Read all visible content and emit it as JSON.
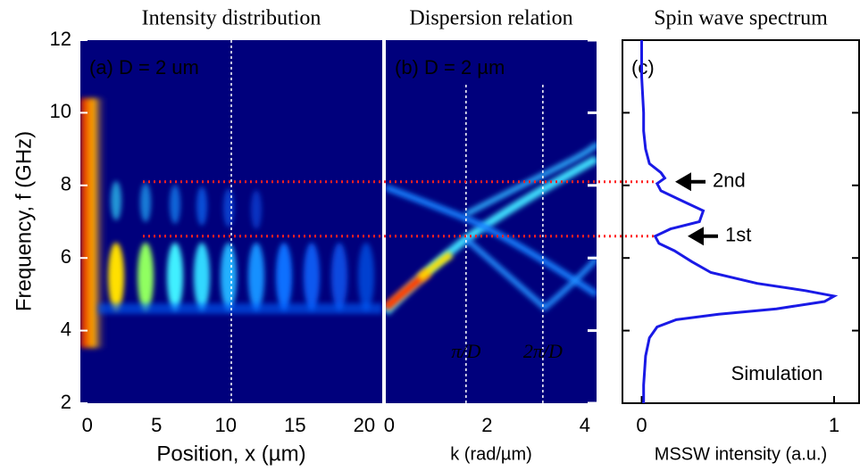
{
  "chart_data": [
    {
      "type": "heatmap",
      "title": "Intensity distribution",
      "panel_label": "(a) D = 2 um",
      "xlabel": "Position, x (µm)",
      "ylabel": "Frequency, f (GHz)",
      "xlim": [
        -0.5,
        21.3
      ],
      "xticks": [
        0,
        5,
        10,
        15,
        20
      ],
      "ylim": [
        2,
        12
      ],
      "yticks": [
        2,
        4,
        6,
        8,
        10,
        12
      ],
      "marker_lines": [
        10.4
      ]
    },
    {
      "type": "heatmap",
      "title": "Dispersion relation",
      "panel_label": "(b) D = 2 µm",
      "xlabel": "k (rad/µm)",
      "xlim": [
        -0.07,
        4.24
      ],
      "xticks": [
        0,
        2,
        4
      ],
      "ylim": [
        2,
        12
      ],
      "yticks": [
        2,
        4,
        6,
        8,
        10,
        12
      ],
      "marker_lines": [
        {
          "value": 1.571,
          "label": "π/D"
        },
        {
          "value": 3.142,
          "label": "2π/D"
        }
      ]
    },
    {
      "type": "line",
      "title": "Spin wave spectrum",
      "panel_label": "(c)",
      "xlabel": "MSSW intensity (a.u.)",
      "xlim": [
        -0.1,
        1.13
      ],
      "xticks": [
        0,
        1
      ],
      "ylim": [
        2,
        12
      ],
      "yticks": [
        2,
        4,
        6,
        8,
        10,
        12
      ],
      "series": [
        {
          "name": "Simulation",
          "color": "#1a1ae6",
          "x": [
            0.0,
            0.0,
            0.01,
            0.01,
            0.02,
            0.04,
            0.1,
            0.12,
            0.08,
            0.1,
            0.2,
            0.32,
            0.3,
            0.15,
            0.07,
            0.09,
            0.17,
            0.26,
            0.36,
            0.6,
            0.85,
            1.0,
            0.95,
            0.7,
            0.4,
            0.18,
            0.08,
            0.04,
            0.02,
            0.01,
            0.01
          ],
          "y": [
            12,
            11,
            10,
            9.5,
            9,
            8.6,
            8.35,
            8.2,
            8.05,
            7.85,
            7.6,
            7.3,
            7.0,
            6.8,
            6.6,
            6.4,
            6.2,
            5.9,
            5.6,
            5.3,
            5.1,
            4.95,
            4.8,
            4.6,
            4.45,
            4.3,
            4.1,
            3.8,
            3.3,
            2.5,
            2
          ]
        }
      ],
      "annotations": [
        {
          "text": "2nd",
          "y": 8.1
        },
        {
          "text": "1st",
          "y": 6.6
        }
      ]
    }
  ]
}
